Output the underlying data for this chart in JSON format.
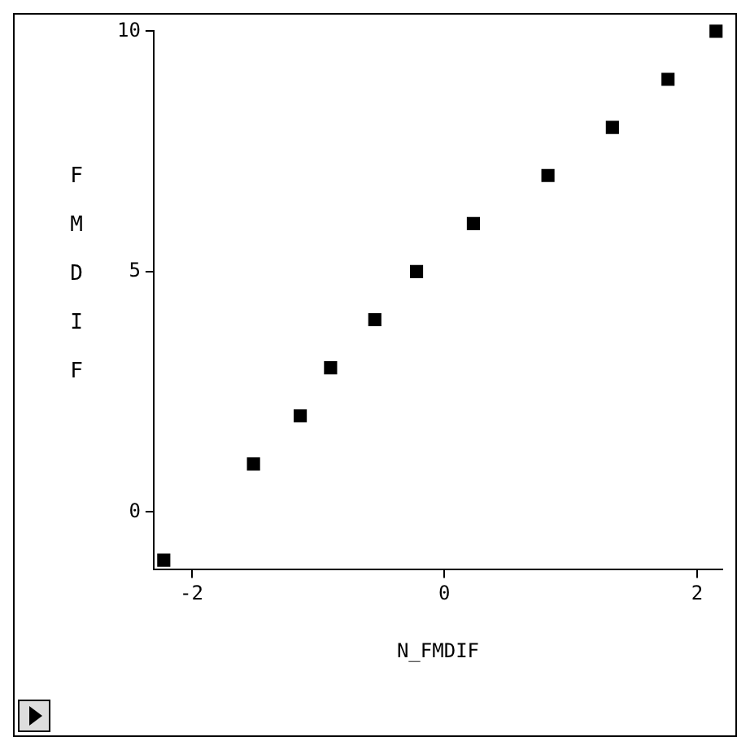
{
  "chart_data": {
    "type": "scatter",
    "xlabel": "N_FMDIF",
    "ylabel": "FMDIF",
    "x": [
      -2.22,
      -1.51,
      -1.14,
      -0.9,
      -0.55,
      -0.22,
      0.23,
      0.82,
      1.33,
      1.77,
      2.15
    ],
    "series": [
      {
        "color": "#000000",
        "values": [
          -1,
          1,
          2,
          3,
          4,
          5,
          6,
          7,
          8,
          9,
          10
        ]
      }
    ],
    "xlim": [
      -2.3,
      2.2
    ],
    "xticks": [
      -2,
      0,
      2
    ],
    "ylim": [
      -1.2,
      10
    ],
    "yticks": [
      0,
      5,
      10
    ],
    "grid": false,
    "legend": false,
    "marker": "square"
  }
}
